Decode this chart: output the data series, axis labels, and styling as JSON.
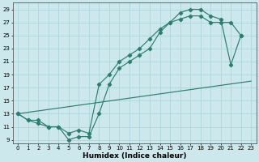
{
  "xlabel": "Humidex (Indice chaleur)",
  "xlim": [
    -0.5,
    23.5
  ],
  "ylim": [
    8.5,
    30
  ],
  "xticks": [
    0,
    1,
    2,
    3,
    4,
    5,
    6,
    7,
    8,
    9,
    10,
    11,
    12,
    13,
    14,
    15,
    16,
    17,
    18,
    19,
    20,
    21,
    22,
    23
  ],
  "yticks": [
    9,
    11,
    13,
    15,
    17,
    19,
    21,
    23,
    25,
    27,
    29
  ],
  "bg_color": "#cde8ec",
  "line_color": "#2e7d6f",
  "grid_color": "#b0d8de",
  "curve1_x": [
    0,
    1,
    2,
    3,
    4,
    5,
    6,
    7,
    8,
    9,
    10,
    11,
    12,
    13,
    14,
    15,
    16,
    17,
    18,
    19,
    20,
    21,
    22
  ],
  "curve1_y": [
    13,
    12,
    12,
    11,
    11,
    9,
    9.5,
    9.5,
    13,
    17.5,
    20,
    21,
    22,
    23,
    25.5,
    27,
    28.5,
    29,
    29,
    28,
    27.5,
    20.5,
    25
  ],
  "curve2_x": [
    0,
    1,
    2,
    3,
    4,
    5,
    6,
    7,
    8,
    9,
    10,
    11,
    12,
    13,
    14,
    15,
    16,
    17,
    18,
    19,
    20,
    21,
    22
  ],
  "curve2_y": [
    13,
    12,
    11.5,
    11,
    11,
    10,
    10.5,
    10,
    17.5,
    19,
    21,
    22,
    23,
    24.5,
    26,
    27,
    27.5,
    28,
    28,
    27,
    27,
    27,
    25
  ],
  "curve3_x": [
    0,
    23
  ],
  "curve3_y": [
    13,
    18
  ]
}
